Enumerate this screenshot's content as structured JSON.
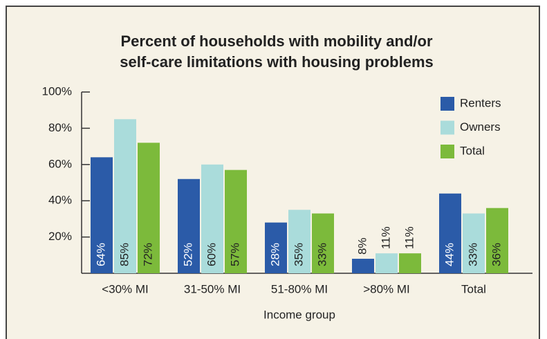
{
  "chart_data": {
    "type": "bar",
    "title": [
      "Percent of households with mobility and/or",
      "self-care limitations with housing problems"
    ],
    "x_label": "Income group",
    "categories": [
      "<30% MI",
      "31-50% MI",
      "51-80% MI",
      ">80% MI",
      "Total"
    ],
    "series": [
      {
        "name": "Renters",
        "color": "#2b5ba8",
        "values": [
          64,
          52,
          28,
          8,
          44
        ],
        "value_labels": [
          "64%",
          "52%",
          "28%",
          "8%",
          "44%"
        ]
      },
      {
        "name": "Owners",
        "color": "#aadcdb",
        "values": [
          85,
          60,
          35,
          11,
          33
        ],
        "value_labels": [
          "85%",
          "60%",
          "35%",
          "11%",
          "33%"
        ]
      },
      {
        "name": "Total",
        "color": "#7cba3b",
        "values": [
          72,
          57,
          33,
          11,
          36
        ],
        "value_labels": [
          "72%",
          "57%",
          "33%",
          "11%",
          "36%"
        ]
      }
    ],
    "ylim": [
      0,
      100
    ],
    "yticks": [
      {
        "value": 20,
        "label": "20%"
      },
      {
        "value": 40,
        "label": "40%"
      },
      {
        "value": 60,
        "label": "60%"
      },
      {
        "value": 80,
        "label": "80%"
      },
      {
        "value": 100,
        "label": "100%"
      }
    ],
    "legend": "top-right"
  }
}
